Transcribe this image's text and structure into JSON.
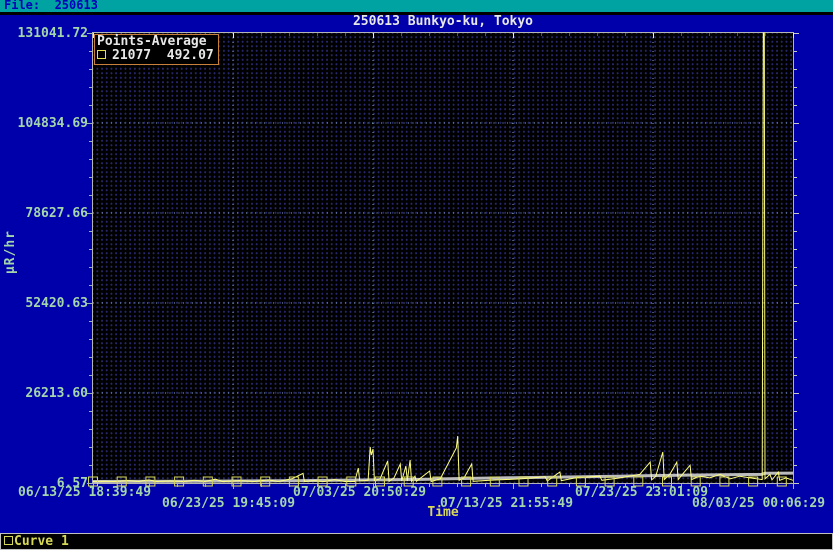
{
  "window": {
    "file_label": "File:  250613"
  },
  "legend": {
    "title": "Points-Average",
    "entry_points": "21077",
    "entry_average": "492.07"
  },
  "statusbar": {
    "curve_label": "Curve 1"
  },
  "colors": {
    "background": "#0000AA",
    "topbar": "#00A2A2",
    "plot_bg": "#000000",
    "curve": "#FFFF80",
    "average_line": "#BCBCBC",
    "marker": "#D8D858",
    "tick_label": "#A4D6AC",
    "axis_title_x": "#D8D858",
    "major_grid": "#7FA3C8",
    "legend_border": "#C8803A"
  },
  "chart_data": {
    "type": "line",
    "title": "250613 Bunkyo-ku, Tokyo",
    "xlabel": "Time",
    "ylabel": "µR/hr",
    "ylim": [
      6.57,
      131041.72
    ],
    "y_tick_labels": [
      "6.57",
      "26213.60",
      "52420.63",
      "78627.66",
      "104834.69",
      "131041.72"
    ],
    "x_tick_labels": [
      "06/13/25 18:39:49",
      "06/23/25 19:45:09",
      "07/03/25 20:50:29",
      "07/13/25 21:55:49",
      "07/23/25 23:01:09",
      "08/03/25 00:06:29"
    ],
    "grid": "dotted-major-with-dot-matrix-minor",
    "legend_position": "top-left",
    "series": [
      {
        "name": "Points",
        "color": "#FFFF80",
        "width": 1,
        "points": [
          [
            0.0,
            440
          ],
          [
            0.015,
            520
          ],
          [
            0.03,
            430
          ],
          [
            0.05,
            700
          ],
          [
            0.065,
            430
          ],
          [
            0.08,
            900
          ],
          [
            0.09,
            440
          ],
          [
            0.11,
            600
          ],
          [
            0.13,
            430
          ],
          [
            0.145,
            800
          ],
          [
            0.16,
            450
          ],
          [
            0.175,
            1100
          ],
          [
            0.185,
            430
          ],
          [
            0.21,
            700
          ],
          [
            0.23,
            450
          ],
          [
            0.25,
            900
          ],
          [
            0.265,
            440
          ],
          [
            0.285,
            1300
          ],
          [
            0.3,
            2800
          ],
          [
            0.302,
            460
          ],
          [
            0.315,
            700
          ],
          [
            0.33,
            440
          ],
          [
            0.345,
            1000
          ],
          [
            0.36,
            450
          ],
          [
            0.374,
            440
          ],
          [
            0.379,
            4375
          ],
          [
            0.381,
            600
          ],
          [
            0.393,
            800
          ],
          [
            0.396,
            10490
          ],
          [
            0.3975,
            8160
          ],
          [
            0.4,
            9900
          ],
          [
            0.402,
            700
          ],
          [
            0.41,
            1200
          ],
          [
            0.421,
            6412
          ],
          [
            0.423,
            500
          ],
          [
            0.43,
            1500
          ],
          [
            0.439,
            5540
          ],
          [
            0.441,
            600
          ],
          [
            0.447,
            4950
          ],
          [
            0.449,
            600
          ],
          [
            0.453,
            6700
          ],
          [
            0.455,
            500
          ],
          [
            0.46,
            2000
          ],
          [
            0.462,
            500
          ],
          [
            0.481,
            3500
          ],
          [
            0.483,
            450
          ],
          [
            0.496,
            1200
          ],
          [
            0.519,
            10200
          ],
          [
            0.521,
            13690
          ],
          [
            0.523,
            800
          ],
          [
            0.53,
            1500
          ],
          [
            0.541,
            5540
          ],
          [
            0.543,
            500
          ],
          [
            0.567,
            800
          ],
          [
            0.61,
            1200
          ],
          [
            0.646,
            1800
          ],
          [
            0.649,
            600
          ],
          [
            0.667,
            3200
          ],
          [
            0.669,
            700
          ],
          [
            0.689,
            1500
          ],
          [
            0.724,
            2000
          ],
          [
            0.727,
            800
          ],
          [
            0.753,
            1500
          ],
          [
            0.781,
            2500
          ],
          [
            0.796,
            6100
          ],
          [
            0.798,
            900
          ],
          [
            0.804,
            2000
          ],
          [
            0.814,
            9030
          ],
          [
            0.816,
            1000
          ],
          [
            0.824,
            2500
          ],
          [
            0.834,
            6100
          ],
          [
            0.836,
            1000
          ],
          [
            0.844,
            3000
          ],
          [
            0.853,
            5200
          ],
          [
            0.855,
            1000
          ],
          [
            0.867,
            2000
          ],
          [
            0.881,
            1500
          ],
          [
            0.896,
            2500
          ],
          [
            0.91,
            1200
          ],
          [
            0.924,
            2000
          ],
          [
            0.939,
            1500
          ],
          [
            0.956,
            1000
          ],
          [
            0.9575,
            131041.72
          ],
          [
            0.959,
            131041.72
          ],
          [
            0.96,
            1200
          ],
          [
            0.967,
            2500
          ],
          [
            0.97,
            900
          ],
          [
            0.979,
            3200
          ],
          [
            0.981,
            800
          ],
          [
            0.99,
            1500
          ],
          [
            1.0,
            800
          ]
        ]
      },
      {
        "name": "Average",
        "color": "#BCBCBC",
        "width": 3,
        "points": [
          [
            0.0,
            440
          ],
          [
            0.15,
            500
          ],
          [
            0.3,
            700
          ],
          [
            0.4,
            900
          ],
          [
            0.47,
            1050
          ],
          [
            0.5,
            1200
          ],
          [
            0.55,
            1400
          ],
          [
            0.6,
            1550
          ],
          [
            0.65,
            1700
          ],
          [
            0.7,
            1850
          ],
          [
            0.75,
            2000
          ],
          [
            0.8,
            2150
          ],
          [
            0.85,
            2300
          ],
          [
            0.9,
            2400
          ],
          [
            0.955,
            2500
          ],
          [
            0.96,
            2850
          ],
          [
            1.0,
            2900
          ]
        ]
      }
    ],
    "markers": {
      "shape": "square-outline",
      "color": "#D8D858",
      "size": 9,
      "value": 450,
      "x": [
        0.0,
        0.041,
        0.082,
        0.123,
        0.164,
        0.205,
        0.246,
        0.287,
        0.328,
        0.369,
        0.41,
        0.451,
        0.492,
        0.533,
        0.574,
        0.615,
        0.656,
        0.697,
        0.738,
        0.779,
        0.82,
        0.861,
        0.902,
        0.943,
        0.984
      ]
    }
  }
}
